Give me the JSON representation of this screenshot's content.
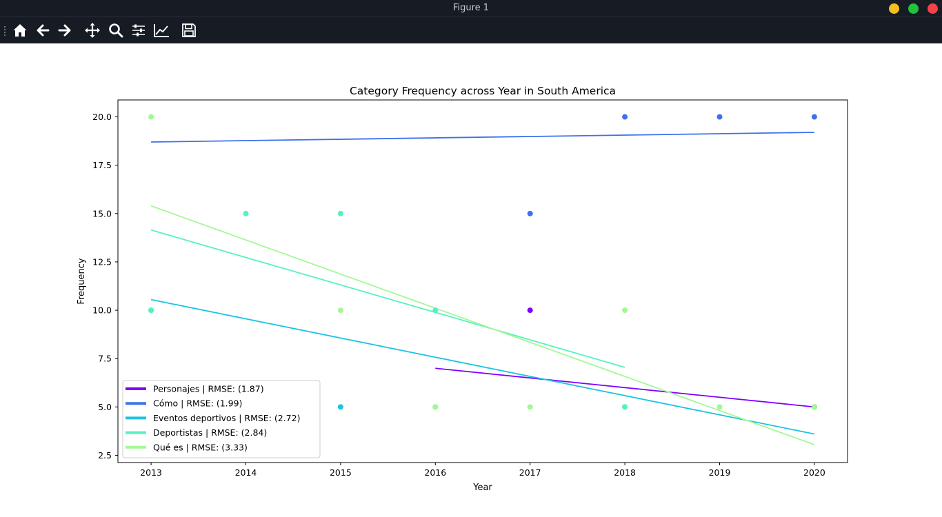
{
  "window": {
    "title": "Figure 1",
    "controls": [
      {
        "name": "minimize-button",
        "color": "#f5bf1d"
      },
      {
        "name": "maximize-button",
        "color": "#1fc33c"
      },
      {
        "name": "close-button",
        "color": "#f2434a"
      }
    ]
  },
  "toolbar": {
    "buttons": [
      {
        "name": "home-button",
        "icon": "home-icon"
      },
      {
        "name": "back-button",
        "icon": "arrow-left-icon"
      },
      {
        "name": "forward-button",
        "icon": "arrow-right-icon"
      },
      {
        "name": "pan-button",
        "icon": "move-icon"
      },
      {
        "name": "zoom-button",
        "icon": "magnifier-icon"
      },
      {
        "name": "configure-subplots-button",
        "icon": "sliders-icon"
      },
      {
        "name": "edit-axis-button",
        "icon": "line-chart-icon"
      },
      {
        "name": "save-button",
        "icon": "floppy-disk-icon"
      }
    ]
  },
  "chart_data": {
    "type": "scatter",
    "title": "Category Frequency across Year in South America",
    "xlabel": "Year",
    "ylabel": "Frequency",
    "xlim": [
      2012.65,
      2020.35
    ],
    "ylim": [
      2.125,
      20.875
    ],
    "xticks": [
      2013,
      2014,
      2015,
      2016,
      2017,
      2018,
      2019,
      2020
    ],
    "yticks": [
      2.5,
      5.0,
      7.5,
      10.0,
      12.5,
      15.0,
      17.5,
      20.0
    ],
    "ytick_labels": [
      "2.5",
      "5.0",
      "7.5",
      "10.0",
      "12.5",
      "15.0",
      "17.5",
      "20.0"
    ],
    "grid": false,
    "legend_position": "lower left",
    "series": [
      {
        "name": "Personajes | RMSE: (1.87)",
        "color": "#8000ff",
        "points": [
          [
            2017,
            10
          ],
          [
            2020,
            5
          ]
        ],
        "trend": [
          [
            2016,
            7.0
          ],
          [
            2020,
            5.0
          ]
        ]
      },
      {
        "name": "Cómo | RMSE: (1.99)",
        "color": "#3e70ec",
        "points": [
          [
            2017,
            15
          ],
          [
            2018,
            20
          ],
          [
            2019,
            20
          ],
          [
            2020,
            20
          ]
        ],
        "trend": [
          [
            2013,
            18.7
          ],
          [
            2020,
            19.2
          ]
        ]
      },
      {
        "name": "Eventos deportivos | RMSE: (2.72)",
        "color": "#1cc3e3",
        "points": [
          [
            2013,
            10
          ],
          [
            2015,
            5
          ],
          [
            2016,
            5
          ],
          [
            2018,
            5
          ]
        ],
        "trend": [
          [
            2013,
            10.55
          ],
          [
            2020,
            3.6
          ]
        ]
      },
      {
        "name": "Deportistas | RMSE: (2.84)",
        "color": "#56f1c1",
        "points": [
          [
            2013,
            10
          ],
          [
            2014,
            15
          ],
          [
            2015,
            15
          ],
          [
            2016,
            10
          ],
          [
            2018,
            5
          ]
        ],
        "trend": [
          [
            2013,
            14.15
          ],
          [
            2018,
            7.05
          ]
        ]
      },
      {
        "name": "Qué es | RMSE: (3.33)",
        "color": "#a4f795",
        "points": [
          [
            2013,
            20
          ],
          [
            2015,
            10
          ],
          [
            2016,
            5
          ],
          [
            2017,
            5
          ],
          [
            2018,
            10
          ],
          [
            2019,
            5
          ],
          [
            2020,
            5
          ]
        ],
        "trend": [
          [
            2013,
            15.4
          ],
          [
            2020,
            3.05
          ]
        ]
      }
    ]
  }
}
